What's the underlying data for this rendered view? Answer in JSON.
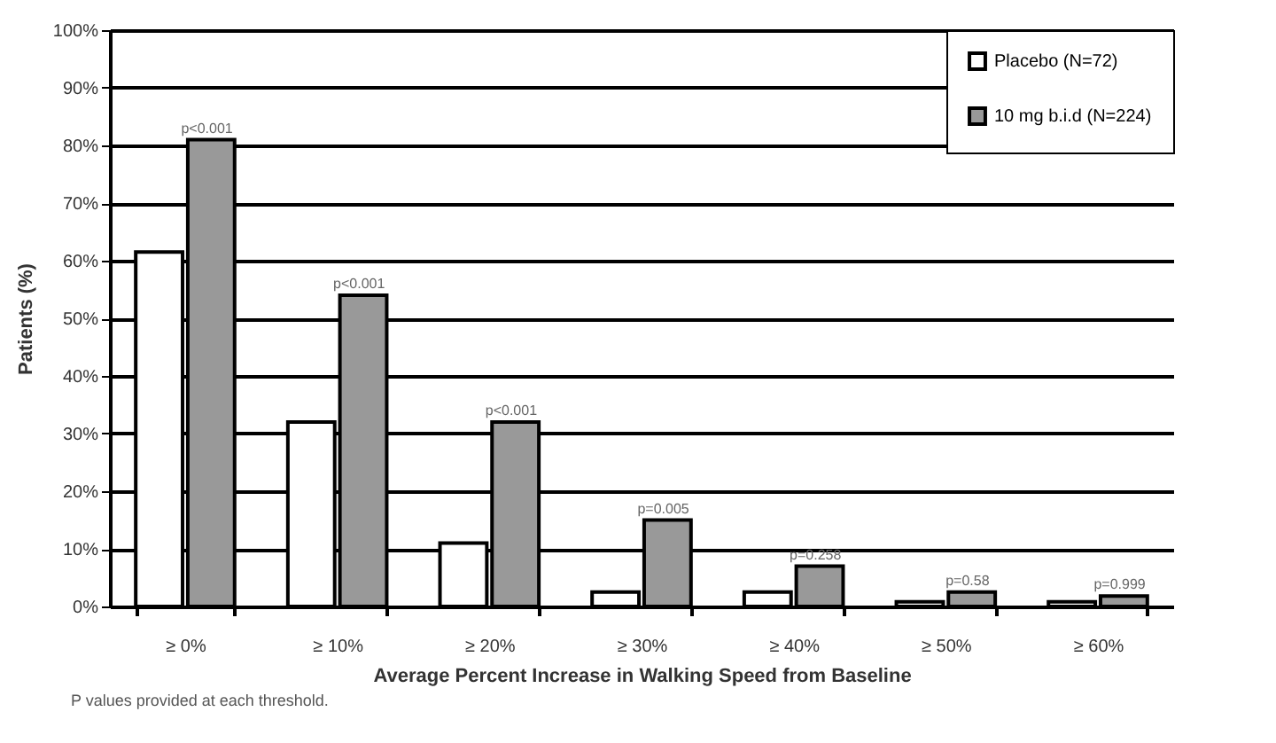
{
  "chart_data": {
    "type": "bar",
    "xlabel": "Average Percent Increase in Walking Speed from Baseline",
    "ylabel": "Patients (%)",
    "categories": [
      "≥ 0%",
      "≥ 10%",
      "≥ 20%",
      "≥ 30%",
      "≥ 40%",
      "≥ 50%",
      "≥ 60%"
    ],
    "series": [
      {
        "name": "Placebo (N=72)",
        "color": "#ffffff",
        "values": [
          61.5,
          32,
          11,
          2.5,
          2.5,
          0.8,
          0.8
        ]
      },
      {
        "name": "10 mg b.i.d (N=224)",
        "color": "#999999",
        "values": [
          81,
          54,
          32,
          15,
          7,
          2.5,
          1.8
        ]
      }
    ],
    "ylim": [
      0,
      100
    ],
    "yticks": [
      {
        "value": 0,
        "label": "0%"
      },
      {
        "value": 10,
        "label": "10%"
      },
      {
        "value": 20,
        "label": "20%"
      },
      {
        "value": 30,
        "label": "30%"
      },
      {
        "value": 40,
        "label": "40%"
      },
      {
        "value": 50,
        "label": "50%"
      },
      {
        "value": 60,
        "label": "60%"
      },
      {
        "value": 70,
        "label": "70%"
      },
      {
        "value": 80,
        "label": "80%"
      },
      {
        "value": 90,
        "label": "90%"
      },
      {
        "value": 100,
        "label": "100%"
      }
    ],
    "grid": "y",
    "legend": "top right",
    "annotations": [
      {
        "text": "p<0.001",
        "x": "≥ 0%",
        "y": 81
      },
      {
        "text": "p<0.001",
        "x": "≥ 10%",
        "y": 54
      },
      {
        "text": "p<0.001",
        "x": "≥ 20%",
        "y": 32
      },
      {
        "text": "p=0.005",
        "x": "≥ 30%",
        "y": 15
      },
      {
        "text": "p=0.258",
        "x": "≥ 40%",
        "y": 7
      },
      {
        "text": "p=0.58",
        "x": "≥ 50%",
        "y": 2.5
      },
      {
        "text": "p=0.999",
        "x": "≥ 60%",
        "y": 1.8
      },
      "P values provided at each threshold."
    ]
  }
}
